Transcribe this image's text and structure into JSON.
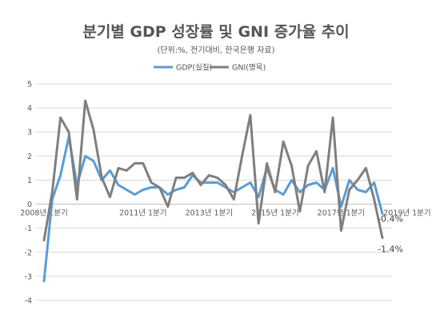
{
  "chart_data": {
    "type": "line",
    "title": "분기별 GDP 성장률 및 GNI 증가율 추이",
    "subtitle": "(단위:%, 전기대비, 한국은행 자료)",
    "ylim": [
      -4,
      5
    ],
    "yticks": [
      5,
      4,
      3,
      2,
      1,
      0,
      -1,
      -2,
      -3,
      -4
    ],
    "x_tick_labels": [
      {
        "index": 0,
        "label": "2008년 1분기"
      },
      {
        "index": 12,
        "label": "2011년 1분기"
      },
      {
        "index": 20,
        "label": "2013년 1분기"
      },
      {
        "index": 28,
        "label": "2015년 1분기"
      },
      {
        "index": 36,
        "label": "2017년 1분기"
      },
      {
        "index": 44,
        "label": "2019년 1분기"
      }
    ],
    "grid": true,
    "legend_position": "top-center",
    "series": [
      {
        "name": "GDP(실질)",
        "color": "#5B9BD5",
        "values": [
          -3.2,
          0.2,
          1.2,
          2.8,
          0.8,
          2.0,
          1.8,
          1.0,
          1.4,
          0.8,
          0.6,
          0.4,
          0.6,
          0.7,
          0.7,
          0.4,
          0.6,
          0.7,
          1.2,
          0.9,
          0.9,
          0.9,
          0.7,
          0.5,
          0.7,
          0.9,
          0.3,
          1.5,
          0.6,
          0.4,
          1.0,
          0.5,
          0.8,
          0.9,
          0.6,
          1.5,
          -0.1,
          1.0,
          0.6,
          0.5,
          0.9,
          -0.4
        ],
        "end_label": "-0.4%"
      },
      {
        "name": "GNI(명목)",
        "color": "#7F7F7F",
        "values": [
          -1.5,
          0.5,
          3.6,
          3.0,
          0.2,
          4.3,
          3.1,
          1.1,
          0.3,
          1.5,
          1.4,
          1.7,
          1.7,
          0.9,
          0.7,
          -0.1,
          1.1,
          1.1,
          1.3,
          0.8,
          1.2,
          1.1,
          0.8,
          0.2,
          2.0,
          3.7,
          -0.8,
          1.7,
          0.5,
          2.6,
          1.6,
          -0.3,
          1.6,
          2.2,
          0.5,
          3.6,
          -1.1,
          0.6,
          1.0,
          1.5,
          0.2,
          -1.4
        ],
        "end_label": "-1.4%"
      }
    ]
  }
}
